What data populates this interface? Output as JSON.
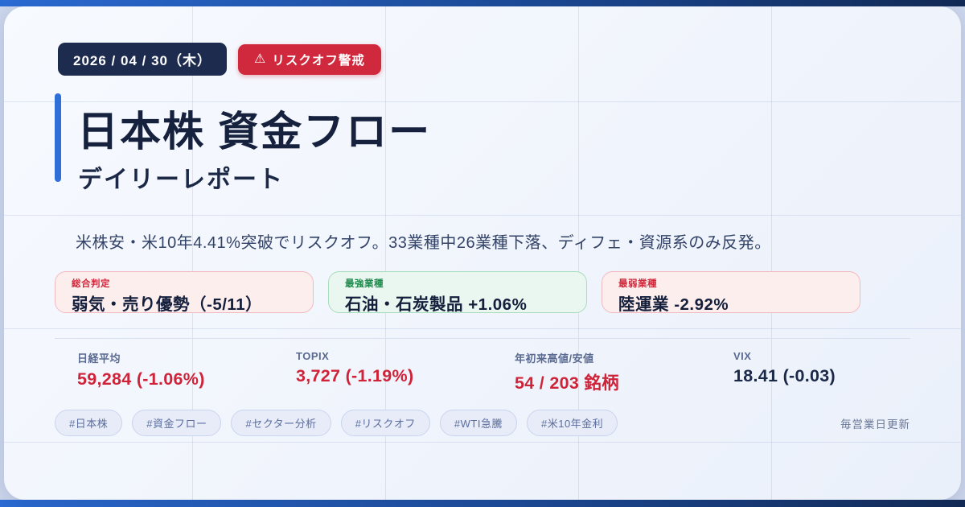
{
  "header": {
    "date": "2026 / 04 / 30（木）",
    "alert_label": "リスクオフ警戒",
    "title": "日本株 資金フロー",
    "subtitle": "デイリーレポート"
  },
  "icons": {
    "alert_glyph": "⚠"
  },
  "summary": "米株安・米10年4.41%突破でリスクオフ。33業種中26業種下落、ディフェ・資源系のみ反発。",
  "judgement_cards": [
    {
      "label": "総合判定",
      "value": "弱気・売り優勢（-5/11）",
      "tone": "negative"
    },
    {
      "label": "最強業種",
      "value": "石油・石炭製品 +1.06%",
      "tone": "positive"
    },
    {
      "label": "最弱業種",
      "value": "陸運業 -2.92%",
      "tone": "negative"
    }
  ],
  "stats": [
    {
      "label": "日経平均",
      "value": "59,284 (-1.06%)",
      "color": "red"
    },
    {
      "label": "TOPIX",
      "value": "3,727 (-1.19%)",
      "color": "red"
    },
    {
      "label": "年初来高値/安値",
      "value": "54 / 203 銘柄",
      "color": "red"
    },
    {
      "label": "VIX",
      "value": "18.41 (-0.03)",
      "color": "navy"
    }
  ],
  "tags": [
    "#日本株",
    "#資金フロー",
    "#セクター分析",
    "#リスクオフ",
    "#WTI急騰",
    "#米10年金利"
  ],
  "footer": {
    "update_note": "毎営業日更新"
  },
  "colors": {
    "accent_blue": "#2e6fd8",
    "navy": "#1d2b4e",
    "alert_red": "#d0283c",
    "value_red": "#cf2339",
    "positive_green": "#1f8a4d",
    "bar_gradient_start": "#2b6cd4",
    "bar_gradient_end": "#122a55",
    "page_band": "#ccd6ec",
    "card_bg": "#f0f4fc"
  }
}
